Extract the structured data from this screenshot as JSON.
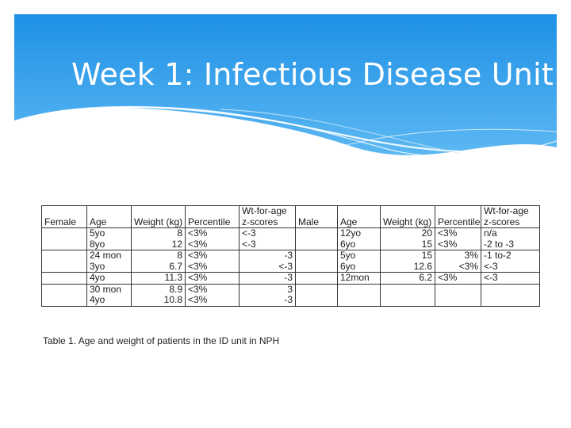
{
  "slide": {
    "title": "Week 1: Infectious Disease Unit",
    "accent_color": "#2f9fe9"
  },
  "table": {
    "header": {
      "female": "Female",
      "age": "Age",
      "weight": "Weight (kg)",
      "percentile": "Percentile",
      "z_top": "Wt-for-age",
      "z_bottom": "z-scores",
      "male": "Male",
      "age_m": "Age",
      "weight_m": "Weight (kg)",
      "percentile_m": "Percentile",
      "z_top_m": "Wt-for-age",
      "z_bottom_m": "z-scores"
    },
    "female_rows": [
      {
        "age": [
          "5yo",
          "8yo"
        ],
        "weight": [
          "8",
          "12"
        ],
        "percentile": [
          "<3%",
          "<3%"
        ],
        "z": [
          "<-3",
          "<-3"
        ]
      },
      {
        "age": [
          "24 mon",
          "3yo"
        ],
        "weight": [
          "8",
          "6.7"
        ],
        "percentile": [
          "<3%",
          "<3%"
        ],
        "z": [
          "-3",
          "<-3"
        ]
      },
      {
        "age": [
          "4yo"
        ],
        "weight": [
          "11.3"
        ],
        "percentile": [
          "<3%"
        ],
        "z": [
          "-3"
        ]
      },
      {
        "age": [
          "30 mon",
          "4yo"
        ],
        "weight": [
          "8.9",
          "10.8"
        ],
        "percentile": [
          "<3%",
          "<3%"
        ],
        "z": [
          "3",
          "-3"
        ]
      }
    ],
    "male_rows": [
      {
        "age": [
          "12yo",
          "6yo"
        ],
        "weight": [
          "20",
          "15"
        ],
        "percentile": [
          "<3%",
          "<3%"
        ],
        "z": [
          "n/a",
          "-2 to -3"
        ]
      },
      {
        "age": [
          "5yo",
          "6yo"
        ],
        "weight": [
          "15",
          "12.6"
        ],
        "percentile": [
          "3%",
          "<3%"
        ],
        "z": [
          "-1 to-2",
          "<-3"
        ]
      },
      {
        "age": [
          "12mon"
        ],
        "weight": [
          "6.2"
        ],
        "percentile": [
          "<3%"
        ],
        "z": [
          "<-3"
        ]
      }
    ],
    "caption": "Table 1. Age and weight of patients in the ID unit in NPH"
  }
}
